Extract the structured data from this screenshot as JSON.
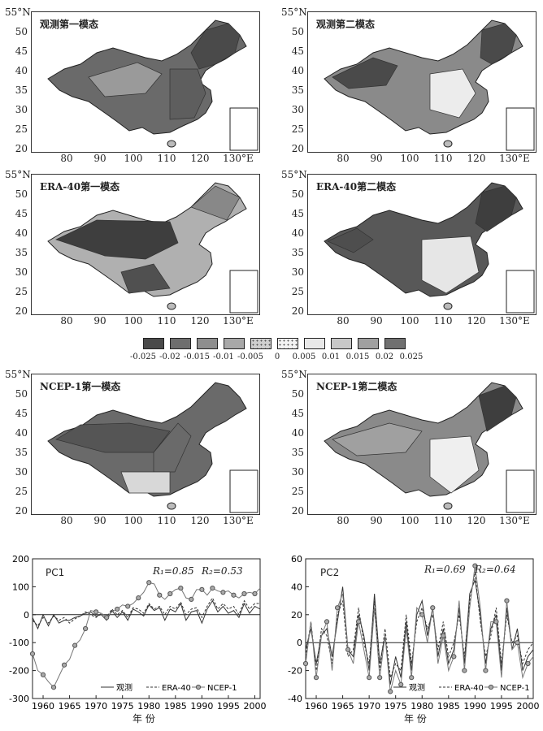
{
  "maps": {
    "ytick_top": "55°N",
    "yticks": [
      "50",
      "45",
      "40",
      "35",
      "30",
      "25",
      "20"
    ],
    "xticks": [
      "80",
      "90",
      "100",
      "110",
      "120",
      "130°E"
    ],
    "panels": [
      {
        "title": "观测第一模态"
      },
      {
        "title": "观测第二模态"
      },
      {
        "title": "ERA-40第一模态"
      },
      {
        "title": "ERA-40第二模态"
      },
      {
        "title": "NCEP-1第一模态"
      },
      {
        "title": "NCEP-1第二模态"
      }
    ]
  },
  "colorbar": {
    "labels": [
      "-0.025",
      "-0.02",
      "-0.015",
      "-0.01",
      "-0.005",
      "0",
      "0.005",
      "0.01",
      "0.015",
      "0.02",
      "0.025"
    ],
    "colors": [
      "#4a4a4a",
      "#6e6e6e",
      "#8e8e8e",
      "#a8a8a8",
      "#cfcfcf",
      "#f2f2f2",
      "#e8e8e8",
      "#c8c8c8",
      "#a0a0a0",
      "#707070"
    ]
  },
  "pc1": {
    "title": "PC1",
    "r1": "R₁=0.85",
    "r2": "R₂=0.53",
    "yticks": [
      "200",
      "100",
      "0",
      "-100",
      "-200",
      "-300"
    ],
    "xticks": [
      "1960",
      "1965",
      "1970",
      "1975",
      "1980",
      "1985",
      "1990",
      "1995",
      "2000"
    ],
    "xlabel": "年  份",
    "legend": [
      "观测",
      "ERA-40",
      "NCEP-1"
    ]
  },
  "pc2": {
    "title": "PC2",
    "r1": "R₁=0.69",
    "r2": "R₂=0.64",
    "yticks": [
      "60",
      "40",
      "20",
      "0",
      "-20",
      "-40"
    ],
    "xticks": [
      "1960",
      "1965",
      "1970",
      "1975",
      "1980",
      "1985",
      "1990",
      "1995",
      "2000"
    ],
    "xlabel": "年  份",
    "legend": [
      "观测",
      "ERA-40",
      "NCEP-1"
    ]
  },
  "chart_data": [
    {
      "type": "line",
      "title": "PC1",
      "xlabel": "年 份",
      "ylabel": "",
      "xlim": [
        1958,
        2001
      ],
      "ylim": [
        -300,
        200
      ],
      "x": [
        1958,
        1959,
        1960,
        1961,
        1962,
        1963,
        1964,
        1965,
        1966,
        1967,
        1968,
        1969,
        1970,
        1971,
        1972,
        1973,
        1974,
        1975,
        1976,
        1977,
        1978,
        1979,
        1980,
        1981,
        1982,
        1983,
        1984,
        1985,
        1986,
        1987,
        1988,
        1989,
        1990,
        1991,
        1992,
        1993,
        1994,
        1995,
        1996,
        1997,
        1998,
        1999,
        2000,
        2001
      ],
      "series": [
        {
          "name": "观测",
          "values": [
            -10,
            -50,
            0,
            -40,
            0,
            -30,
            -20,
            -20,
            -10,
            -5,
            5,
            10,
            -5,
            0,
            -20,
            15,
            -10,
            10,
            -20,
            20,
            10,
            -5,
            35,
            15,
            25,
            -20,
            20,
            10,
            40,
            -20,
            10,
            15,
            -30,
            20,
            50,
            10,
            30,
            5,
            15,
            -10,
            40,
            5,
            30,
            20
          ]
        },
        {
          "name": "ERA-40",
          "values": [
            -20,
            -40,
            -10,
            -30,
            -5,
            -20,
            -10,
            -30,
            -15,
            -5,
            10,
            0,
            -10,
            5,
            -10,
            20,
            0,
            15,
            -10,
            25,
            20,
            5,
            40,
            20,
            30,
            0,
            30,
            20,
            45,
            0,
            20,
            25,
            -10,
            30,
            60,
            20,
            40,
            20,
            30,
            0,
            50,
            20,
            40,
            40
          ]
        },
        {
          "name": "NCEP-1",
          "values": [
            -140,
            -200,
            -215,
            -240,
            -260,
            -220,
            -180,
            -160,
            -110,
            -90,
            -50,
            15,
            10,
            5,
            -10,
            10,
            20,
            35,
            30,
            40,
            60,
            80,
            115,
            110,
            70,
            55,
            75,
            90,
            95,
            60,
            55,
            90,
            90,
            70,
            95,
            85,
            80,
            85,
            70,
            60,
            75,
            80,
            75,
            95
          ]
        }
      ]
    },
    {
      "type": "line",
      "title": "PC2",
      "xlabel": "年 份",
      "ylabel": "",
      "xlim": [
        1958,
        2001
      ],
      "ylim": [
        -40,
        60
      ],
      "x": [
        1958,
        1959,
        1960,
        1961,
        1962,
        1963,
        1964,
        1965,
        1966,
        1967,
        1968,
        1969,
        1970,
        1971,
        1972,
        1973,
        1974,
        1975,
        1976,
        1977,
        1978,
        1979,
        1980,
        1981,
        1982,
        1983,
        1984,
        1985,
        1986,
        1987,
        1988,
        1989,
        1990,
        1991,
        1992,
        1993,
        1994,
        1995,
        1996,
        1997,
        1998,
        1999,
        2000,
        2001
      ],
      "series": [
        {
          "name": "观测",
          "values": [
            -5,
            10,
            -15,
            5,
            10,
            -10,
            15,
            40,
            -5,
            -10,
            20,
            5,
            -20,
            35,
            -15,
            5,
            -30,
            -10,
            -25,
            15,
            -20,
            20,
            30,
            5,
            25,
            -10,
            10,
            -15,
            -5,
            25,
            -15,
            35,
            45,
            20,
            -15,
            10,
            20,
            -20,
            25,
            -5,
            10,
            -20,
            -10,
            -5
          ]
        },
        {
          "name": "ERA-40",
          "values": [
            -10,
            15,
            -20,
            10,
            5,
            -15,
            20,
            30,
            -10,
            -5,
            25,
            0,
            -15,
            30,
            -20,
            10,
            -25,
            -15,
            -20,
            20,
            -15,
            15,
            25,
            10,
            20,
            -5,
            15,
            -10,
            0,
            20,
            -10,
            30,
            50,
            15,
            -10,
            5,
            25,
            -15,
            20,
            0,
            5,
            -15,
            -5,
            0
          ]
        },
        {
          "name": "NCEP-1",
          "values": [
            -15,
            15,
            -25,
            5,
            15,
            -20,
            25,
            35,
            -5,
            -15,
            15,
            -5,
            -25,
            25,
            -25,
            5,
            -35,
            -20,
            -30,
            10,
            -25,
            25,
            20,
            0,
            25,
            -15,
            5,
            -20,
            -10,
            30,
            -20,
            25,
            55,
            25,
            -20,
            15,
            15,
            -25,
            30,
            -5,
            0,
            -25,
            -15,
            -10
          ]
        }
      ]
    }
  ]
}
